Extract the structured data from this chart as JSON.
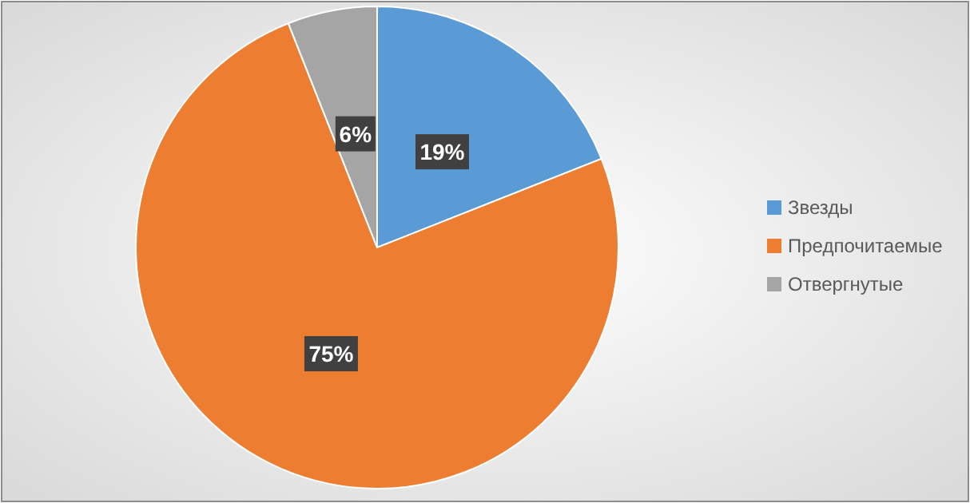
{
  "chart_data": {
    "type": "pie",
    "categories": [
      "Звезды",
      "Предпочитаемые",
      "Отвергнутые"
    ],
    "values": [
      19,
      75,
      6
    ],
    "colors": [
      "#5b9bd5",
      "#ed7d31",
      "#a5a5a5"
    ],
    "value_labels": [
      "19%",
      "75%",
      "6%"
    ],
    "legend": "right"
  }
}
